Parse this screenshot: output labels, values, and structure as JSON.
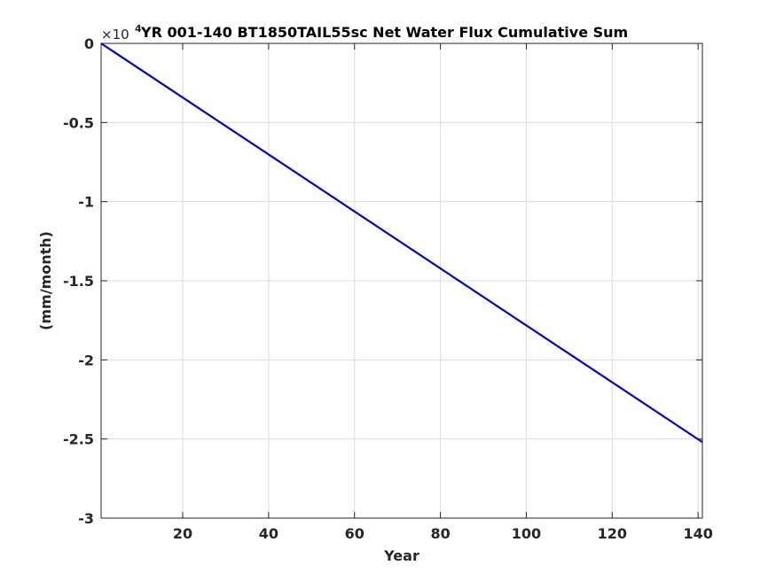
{
  "chart_data": {
    "type": "line",
    "title": "YR 001-140 BT1850TAIL55sc Net Water Flux Cumulative Sum",
    "xlabel": "Year",
    "ylabel": "(mm/month)",
    "xlim": [
      1,
      141
    ],
    "ylim": [
      -3,
      0
    ],
    "x_ticks": [
      20,
      40,
      60,
      80,
      100,
      120,
      140
    ],
    "x_tick_labels": [
      "20",
      "40",
      "60",
      "80",
      "100",
      "120",
      "140"
    ],
    "y_ticks": [
      0,
      -0.5,
      -1,
      -1.5,
      -2,
      -2.5,
      -3
    ],
    "y_tick_labels": [
      "0",
      "-0.5",
      "-1",
      "-1.5",
      "-2",
      "-2.5",
      "-3"
    ],
    "y_exponent_base": "×10",
    "y_exponent_power": "4",
    "grid": true,
    "series": [
      {
        "color": "#0000cc",
        "x": [
          1,
          141
        ],
        "y": [
          0,
          -2.52
        ]
      }
    ]
  }
}
